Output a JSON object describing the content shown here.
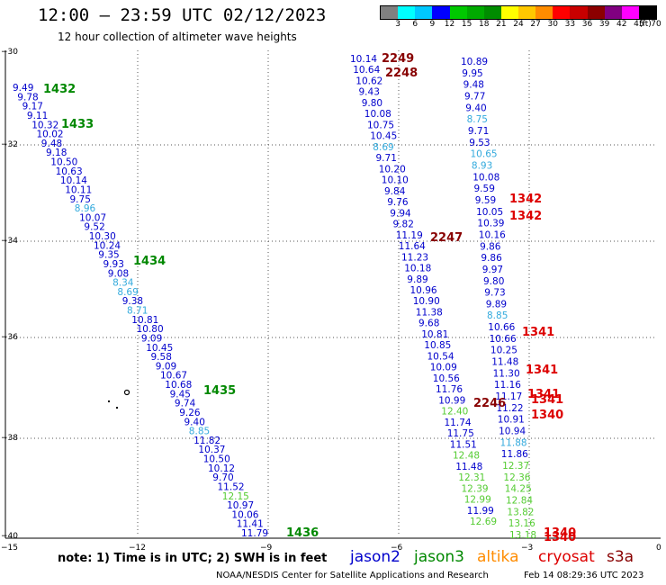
{
  "header": {
    "title": "12:00 – 23:59 UTC 02/12/2023",
    "subtitle": "12 hour collection of altimeter wave heights"
  },
  "legend": {
    "unit": "(ft)",
    "colors": [
      "#808080",
      "#00ffff",
      "#00c8ff",
      "#0000ff",
      "#00c800",
      "#00aa00",
      "#008c00",
      "#ffff00",
      "#ffc800",
      "#ff8c00",
      "#ff0000",
      "#c80000",
      "#8b0000",
      "#800080",
      "#ff00ff",
      "#000000"
    ],
    "ticks": [
      "3",
      "6",
      "9",
      "12",
      "15",
      "18",
      "21",
      "24",
      "27",
      "30",
      "33",
      "36",
      "39",
      "42",
      "45",
      "70"
    ]
  },
  "axes": {
    "lat_labels": [
      "−30",
      "−32",
      "−34",
      "−36",
      "−38",
      "−40"
    ],
    "lon_labels": [
      "−15",
      "−12",
      "−9",
      "−6",
      "−3",
      "0"
    ]
  },
  "colors": {
    "jason2": "#0000cc",
    "jason3": "#008800",
    "altika": "#ff8c00",
    "cryosat": "#dd0000",
    "s3a": "#880000",
    "light_blue": "#33aadd",
    "light_green": "#55cc33"
  },
  "time_labels": [
    {
      "text": "1432",
      "color": "#008800"
    },
    {
      "text": "1433",
      "color": "#008800"
    },
    {
      "text": "1434",
      "color": "#008800"
    },
    {
      "text": "1435",
      "color": "#008800"
    },
    {
      "text": "1436",
      "color": "#008800"
    },
    {
      "text": "2249",
      "color": "#880000"
    },
    {
      "text": "2248",
      "color": "#880000"
    },
    {
      "text": "2247",
      "color": "#880000"
    },
    {
      "text": "2246",
      "color": "#880000"
    },
    {
      "text": "1342",
      "color": "#dd0000"
    },
    {
      "text": "1342",
      "color": "#dd0000"
    },
    {
      "text": "1341",
      "color": "#dd0000"
    },
    {
      "text": "1341",
      "color": "#dd0000"
    },
    {
      "text": "1341",
      "color": "#dd0000"
    },
    {
      "text": "1341",
      "color": "#dd0000"
    },
    {
      "text": "1340",
      "color": "#dd0000"
    },
    {
      "text": "1340",
      "color": "#dd0000"
    },
    {
      "text": "1340",
      "color": "#dd0000"
    }
  ],
  "track_west": [
    [
      "9.49",
      "b"
    ],
    [
      "9.78",
      "b"
    ],
    [
      "9.17",
      "b"
    ],
    [
      "9.11",
      "b"
    ],
    [
      "10.32",
      "b"
    ],
    [
      "10.02",
      "b"
    ],
    [
      "9.48",
      "b"
    ],
    [
      "9.18",
      "b"
    ],
    [
      "10.50",
      "b"
    ],
    [
      "10.63",
      "b"
    ],
    [
      "10.14",
      "b"
    ],
    [
      "10.11",
      "b"
    ],
    [
      "9.75",
      "b"
    ],
    [
      "8.96",
      "c"
    ],
    [
      "10.07",
      "b"
    ],
    [
      "9.52",
      "b"
    ],
    [
      "10.30",
      "b"
    ],
    [
      "10.24",
      "b"
    ],
    [
      "9.35",
      "b"
    ],
    [
      "9.93",
      "b"
    ],
    [
      "9.08",
      "b"
    ],
    [
      "8.34",
      "c"
    ],
    [
      "8.69",
      "c"
    ],
    [
      "9.38",
      "b"
    ],
    [
      "8.71",
      "c"
    ],
    [
      "10.81",
      "b"
    ],
    [
      "10.80",
      "b"
    ],
    [
      "9.09",
      "b"
    ],
    [
      "10.45",
      "b"
    ],
    [
      "9.58",
      "b"
    ],
    [
      "9.09",
      "b"
    ],
    [
      "10.67",
      "b"
    ],
    [
      "10.68",
      "b"
    ],
    [
      "9.45",
      "b"
    ],
    [
      "9.74",
      "b"
    ],
    [
      "9.26",
      "b"
    ],
    [
      "9.40",
      "b"
    ],
    [
      "8.85",
      "c"
    ],
    [
      "11.82",
      "b"
    ],
    [
      "10.37",
      "b"
    ],
    [
      "10.50",
      "b"
    ],
    [
      "10.12",
      "b"
    ],
    [
      "9.70",
      "b"
    ],
    [
      "11.52",
      "b"
    ],
    [
      "12.15",
      "g"
    ],
    [
      "10.97",
      "b"
    ],
    [
      "10.06",
      "b"
    ],
    [
      "11.41",
      "b"
    ],
    [
      "11.79",
      "b"
    ]
  ],
  "track_mid": [
    [
      "10.14",
      "b"
    ],
    [
      "10.64",
      "b"
    ],
    [
      "10.62",
      "b"
    ],
    [
      "9.43",
      "b"
    ],
    [
      "9.80",
      "b"
    ],
    [
      "10.08",
      "b"
    ],
    [
      "10.75",
      "b"
    ],
    [
      "10.45",
      "b"
    ],
    [
      "8.69",
      "c"
    ],
    [
      "9.71",
      "b"
    ],
    [
      "10.20",
      "b"
    ],
    [
      "10.10",
      "b"
    ],
    [
      "9.84",
      "b"
    ],
    [
      "9.76",
      "b"
    ],
    [
      "9.94",
      "b"
    ],
    [
      "9.82",
      "b"
    ],
    [
      "11.19",
      "b"
    ],
    [
      "11.64",
      "b"
    ],
    [
      "11.23",
      "b"
    ],
    [
      "10.18",
      "b"
    ],
    [
      "9.89",
      "b"
    ],
    [
      "10.96",
      "b"
    ],
    [
      "10.90",
      "b"
    ],
    [
      "11.38",
      "b"
    ],
    [
      "9.68",
      "b"
    ],
    [
      "10.81",
      "b"
    ],
    [
      "10.85",
      "b"
    ],
    [
      "10.54",
      "b"
    ],
    [
      "10.09",
      "b"
    ],
    [
      "10.56",
      "b"
    ],
    [
      "11.76",
      "b"
    ],
    [
      "10.99",
      "b"
    ],
    [
      "12.40",
      "g"
    ],
    [
      "11.74",
      "b"
    ],
    [
      "11.75",
      "b"
    ],
    [
      "11.51",
      "b"
    ],
    [
      "12.48",
      "g"
    ],
    [
      "11.48",
      "b"
    ],
    [
      "12.31",
      "g"
    ],
    [
      "12.39",
      "g"
    ],
    [
      "12.99",
      "g"
    ],
    [
      "11.99",
      "b"
    ],
    [
      "12.69",
      "g"
    ]
  ],
  "track_east": [
    [
      "10.89",
      "b"
    ],
    [
      "9.95",
      "b"
    ],
    [
      "9.48",
      "b"
    ],
    [
      "9.77",
      "b"
    ],
    [
      "9.40",
      "b"
    ],
    [
      "8.75",
      "c"
    ],
    [
      "9.71",
      "b"
    ],
    [
      "9.53",
      "b"
    ],
    [
      "10.65",
      "c"
    ],
    [
      "8.93",
      "c"
    ],
    [
      "10.08",
      "b"
    ],
    [
      "9.59",
      "b"
    ],
    [
      "9.59",
      "b"
    ],
    [
      "10.05",
      "b"
    ],
    [
      "10.39",
      "b"
    ],
    [
      "10.16",
      "b"
    ],
    [
      "9.86",
      "b"
    ],
    [
      "9.86",
      "b"
    ],
    [
      "9.97",
      "b"
    ],
    [
      "9.80",
      "b"
    ],
    [
      "9.73",
      "b"
    ],
    [
      "9.89",
      "b"
    ],
    [
      "8.85",
      "c"
    ],
    [
      "10.66",
      "b"
    ],
    [
      "10.66",
      "b"
    ],
    [
      "10.25",
      "b"
    ],
    [
      "11.48",
      "b"
    ],
    [
      "11.30",
      "b"
    ],
    [
      "11.16",
      "b"
    ],
    [
      "11.17",
      "b"
    ],
    [
      "11.22",
      "b"
    ],
    [
      "10.91",
      "b"
    ],
    [
      "10.94",
      "b"
    ],
    [
      "11.88",
      "c"
    ],
    [
      "11.86",
      "b"
    ],
    [
      "12.37",
      "g"
    ],
    [
      "12.36",
      "g"
    ],
    [
      "14.25",
      "g"
    ],
    [
      "12.84",
      "g"
    ],
    [
      "13.82",
      "g"
    ],
    [
      "13.16",
      "g"
    ],
    [
      "13.18",
      "g"
    ]
  ],
  "footer": {
    "note": "note:  1) Time is in UTC;  2) SWH is in feet",
    "satellites": [
      "jason2",
      "jason3",
      "altika",
      "cryosat",
      "s3a"
    ],
    "credit": "NOAA/NESDIS Center for Satellite Applications and Research",
    "stamp": "Feb 14 08:29:36 UTC 2023"
  }
}
